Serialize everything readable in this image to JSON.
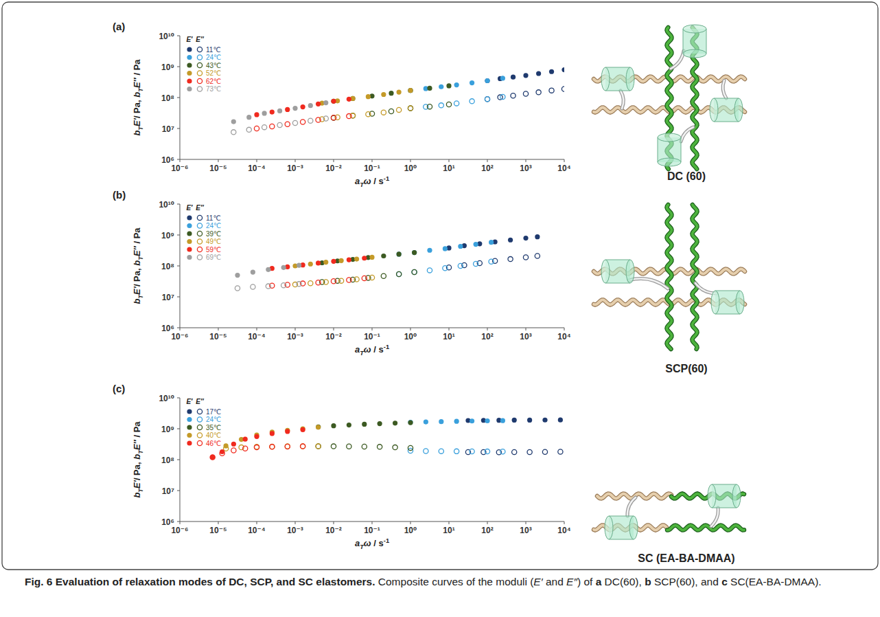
{
  "caption": [
    {
      "text": "Fig. 6 Evaluation of relaxation modes of DC, SCP, and SC elastomers.",
      "style": "bold"
    },
    {
      "text": " Composite curves of the moduli (",
      "style": "normal"
    },
    {
      "text": "E′",
      "style": "italic"
    },
    {
      "text": " and ",
      "style": "normal"
    },
    {
      "text": "E″",
      "style": "italic"
    },
    {
      "text": ") of ",
      "style": "normal"
    },
    {
      "text": "a",
      "style": "bold"
    },
    {
      "text": " DC(60), ",
      "style": "normal"
    },
    {
      "text": "b",
      "style": "bold"
    },
    {
      "text": " SCP(60), and ",
      "style": "normal"
    },
    {
      "text": "c",
      "style": "bold"
    },
    {
      "text": " SC(EA-BA-DMAA).",
      "style": "normal"
    }
  ],
  "chart_data": [
    {
      "type": "scatter",
      "panel_label": "(a)",
      "schematic_label": "DC (60)",
      "xlabel": [
        {
          "text": "a",
          "style": "italic"
        },
        {
          "text": "T",
          "style": "sub"
        },
        {
          "text": "ω",
          "style": "italic"
        },
        {
          "text": " / s",
          "style": "normal"
        },
        {
          "text": "-1",
          "style": "sup"
        }
      ],
      "ylabel": [
        {
          "text": "b",
          "style": "italic"
        },
        {
          "text": "T",
          "style": "sub"
        },
        {
          "text": "E′",
          "style": "italic"
        },
        {
          "text": "/ Pa, ",
          "style": "normal"
        },
        {
          "text": "b",
          "style": "italic"
        },
        {
          "text": "T",
          "style": "sub"
        },
        {
          "text": "E″",
          "style": "italic"
        },
        {
          "text": " / Pa",
          "style": "normal"
        }
      ],
      "log": true,
      "legend": "upper left",
      "marker": "circle",
      "legend_headers": [
        "E′",
        "E″"
      ],
      "xlim": [
        1e-06,
        10000.0
      ],
      "ylim": [
        1000000.0,
        10000000000.0
      ],
      "xticks": [
        {
          "value": 1e-06,
          "label": "10⁻⁶"
        },
        {
          "value": 1e-05,
          "label": "10⁻⁵"
        },
        {
          "value": 0.0001,
          "label": "10⁻⁴"
        },
        {
          "value": 0.001,
          "label": "10⁻³"
        },
        {
          "value": 0.01,
          "label": "10⁻²"
        },
        {
          "value": 0.1,
          "label": "10⁻¹"
        },
        {
          "value": 1,
          "label": "10⁰"
        },
        {
          "value": 10,
          "label": "10¹"
        },
        {
          "value": 100,
          "label": "10²"
        },
        {
          "value": 1000,
          "label": "10³"
        },
        {
          "value": 10000,
          "label": "10⁴"
        }
      ],
      "yticks": [
        {
          "value": 1000000.0,
          "label": "10⁶"
        },
        {
          "value": 10000000.0,
          "label": "10⁷"
        },
        {
          "value": 100000000.0,
          "label": "10⁸"
        },
        {
          "value": 1000000000.0,
          "label": "10⁹"
        },
        {
          "value": 10000000000.0,
          "label": "10¹⁰"
        }
      ],
      "series": [
        {
          "name": "11℃",
          "color": "#1f3a6e",
          "x": [
            100,
            215,
            468,
            1000,
            2150,
            4680,
            10000
          ],
          "values": [
            350000000.0,
            410000000.0,
            460000000.0,
            520000000.0,
            600000000.0,
            690000000.0,
            790000000.0
          ],
          "loss": [
            89000000.0,
            102000000.0,
            115000000.0,
            132000000.0,
            148000000.0,
            170000000.0,
            190000000.0
          ]
        },
        {
          "name": "24℃",
          "color": "#3aa0dc",
          "x": [
            1,
            2.5,
            6.3,
            15.8,
            39.8,
            100,
            251
          ],
          "values": [
            170000000.0,
            195000000.0,
            224000000.0,
            257000000.0,
            300000000.0,
            350000000.0,
            420000000.0
          ],
          "loss": [
            45000000.0,
            50000000.0,
            56000000.0,
            65000000.0,
            76000000.0,
            89000000.0,
            105000000.0
          ]
        },
        {
          "name": "43℃",
          "color": "#3c5a22",
          "x": [
            0.01,
            0.0316,
            0.1,
            0.316,
            1,
            3.16,
            10
          ],
          "values": [
            76000000.0,
            93000000.0,
            112000000.0,
            138000000.0,
            170000000.0,
            200000000.0,
            240000000.0
          ],
          "loss": [
            22000000.0,
            26000000.0,
            30000000.0,
            36000000.0,
            45000000.0,
            51000000.0,
            60000000.0
          ]
        },
        {
          "name": "52℃",
          "color": "#c49a28",
          "x": [
            0.005,
            0.0126,
            0.0316,
            0.0794,
            0.2,
            0.5,
            1
          ],
          "values": [
            66000000.0,
            78000000.0,
            93000000.0,
            107000000.0,
            126000000.0,
            150000000.0,
            170000000.0
          ],
          "loss": [
            20000000.0,
            23000000.0,
            26000000.0,
            29000000.0,
            33000000.0,
            40000000.0,
            45000000.0
          ]
        },
        {
          "name": "62℃",
          "color": "#f02a1e",
          "x": [
            0.0001,
            0.00025,
            0.00063,
            0.00158,
            0.00398,
            0.01,
            0.0251
          ],
          "values": [
            28000000.0,
            34000000.0,
            41000000.0,
            50000000.0,
            62000000.0,
            76000000.0,
            89000000.0
          ],
          "loss": [
            10000000.0,
            11700000.0,
            13800000.0,
            16200000.0,
            19000000.0,
            22400000.0,
            25000000.0
          ]
        },
        {
          "name": "73℃",
          "color": "#9e9e9e",
          "x": [
            2.5e-05,
            6.3e-05,
            0.000158,
            0.000398,
            0.001,
            0.0025,
            0.0063
          ],
          "values": [
            16600000.0,
            23000000.0,
            31000000.0,
            37000000.0,
            45000000.0,
            55000000.0,
            68000000.0
          ],
          "loss": [
            7600000.0,
            9100000.0,
            11000000.0,
            12900000.0,
            15100000.0,
            17800000.0,
            21000000.0
          ]
        }
      ]
    },
    {
      "type": "scatter",
      "panel_label": "(b)",
      "schematic_label": "SCP(60)",
      "xlabel": [
        {
          "text": "a",
          "style": "italic"
        },
        {
          "text": "T",
          "style": "sub"
        },
        {
          "text": "ω",
          "style": "italic"
        },
        {
          "text": " / s",
          "style": "normal"
        },
        {
          "text": "-1",
          "style": "sup"
        }
      ],
      "ylabel": [
        {
          "text": "b",
          "style": "italic"
        },
        {
          "text": "T",
          "style": "sub"
        },
        {
          "text": "E′",
          "style": "italic"
        },
        {
          "text": "/ Pa, ",
          "style": "normal"
        },
        {
          "text": "b",
          "style": "italic"
        },
        {
          "text": "T",
          "style": "sub"
        },
        {
          "text": "E″",
          "style": "italic"
        },
        {
          "text": " / Pa",
          "style": "normal"
        }
      ],
      "log": true,
      "legend": "upper left",
      "marker": "circle",
      "legend_headers": [
        "E′",
        "E″"
      ],
      "xlim": [
        1e-06,
        10000.0
      ],
      "ylim": [
        1000000.0,
        10000000000.0
      ],
      "xticks": [
        {
          "value": 1e-06,
          "label": "10⁻⁶"
        },
        {
          "value": 1e-05,
          "label": "10⁻⁵"
        },
        {
          "value": 0.0001,
          "label": "10⁻⁴"
        },
        {
          "value": 0.001,
          "label": "10⁻³"
        },
        {
          "value": 0.01,
          "label": "10⁻²"
        },
        {
          "value": 0.1,
          "label": "10⁻¹"
        },
        {
          "value": 1,
          "label": "10⁰"
        },
        {
          "value": 10,
          "label": "10¹"
        },
        {
          "value": 100,
          "label": "10²"
        },
        {
          "value": 1000,
          "label": "10³"
        },
        {
          "value": 10000,
          "label": "10⁴"
        }
      ],
      "yticks": [
        {
          "value": 1000000.0,
          "label": "10⁶"
        },
        {
          "value": 10000000.0,
          "label": "10⁷"
        },
        {
          "value": 100000000.0,
          "label": "10⁸"
        },
        {
          "value": 1000000000.0,
          "label": "10⁹"
        },
        {
          "value": 10000000000.0,
          "label": "10¹⁰"
        }
      ],
      "series": [
        {
          "name": "11℃",
          "color": "#1f3a6e",
          "x": [
            10,
            25.1,
            63.1,
            158,
            398,
            1000,
            2000
          ],
          "values": [
            380000000.0,
            450000000.0,
            520000000.0,
            600000000.0,
            690000000.0,
            790000000.0,
            870000000.0
          ],
          "loss": [
            89000000.0,
            105000000.0,
            123000000.0,
            145000000.0,
            166000000.0,
            190000000.0,
            210000000.0
          ]
        },
        {
          "name": "24℃",
          "color": "#3aa0dc",
          "x": [
            0.5,
            1.26,
            3.16,
            7.94,
            20,
            50,
            126
          ],
          "values": [
            240000000.0,
            270000000.0,
            320000000.0,
            360000000.0,
            430000000.0,
            500000000.0,
            580000000.0
          ],
          "loss": [
            54000000.0,
            63000000.0,
            72000000.0,
            85000000.0,
            100000000.0,
            117000000.0,
            138000000.0
          ]
        },
        {
          "name": "39℃",
          "color": "#3c5a22",
          "x": [
            0.005,
            0.0126,
            0.0316,
            0.0794,
            0.2,
            0.5,
            1.26
          ],
          "values": [
            126000000.0,
            145000000.0,
            162000000.0,
            186000000.0,
            210000000.0,
            240000000.0,
            270000000.0
          ],
          "loss": [
            30000000.0,
            33000000.0,
            36000000.0,
            41000000.0,
            47000000.0,
            54000000.0,
            63000000.0
          ]
        },
        {
          "name": "49℃",
          "color": "#c49a28",
          "x": [
            0.001,
            0.0025,
            0.0063,
            0.0158,
            0.0398,
            0.1
          ],
          "values": [
            100000000.0,
            115000000.0,
            132000000.0,
            148000000.0,
            166000000.0,
            190000000.0
          ],
          "loss": [
            25000000.0,
            27500000.0,
            30000000.0,
            33000000.0,
            37000000.0,
            42000000.0
          ]
        },
        {
          "name": "59℃",
          "color": "#f02a1e",
          "x": [
            0.00025,
            0.00063,
            0.00158,
            0.00398,
            0.01,
            0.0251,
            0.0631
          ],
          "values": [
            83000000.0,
            93000000.0,
            107000000.0,
            123000000.0,
            141000000.0,
            158000000.0,
            178000000.0
          ],
          "loss": [
            23000000.0,
            24500000.0,
            27000000.0,
            29000000.0,
            32000000.0,
            35000000.0,
            40000000.0
          ]
        },
        {
          "name": "69℃",
          "color": "#9e9e9e",
          "x": [
            3.16e-05,
            7.94e-05,
            0.0002,
            0.0005,
            0.00126
          ],
          "values": [
            50000000.0,
            63000000.0,
            76000000.0,
            89000000.0,
            105000000.0
          ],
          "loss": [
            19000000.0,
            21000000.0,
            22000000.0,
            23500000.0,
            26000000.0
          ]
        }
      ]
    },
    {
      "type": "scatter",
      "panel_label": "(c)",
      "schematic_label": "SC (EA-BA-DMAA)",
      "xlabel": [
        {
          "text": "a",
          "style": "italic"
        },
        {
          "text": "T",
          "style": "sub"
        },
        {
          "text": "ω",
          "style": "italic"
        },
        {
          "text": " / s",
          "style": "normal"
        },
        {
          "text": "-1",
          "style": "sup"
        }
      ],
      "ylabel": [
        {
          "text": "b",
          "style": "italic"
        },
        {
          "text": "T",
          "style": "sub"
        },
        {
          "text": "E′",
          "style": "italic"
        },
        {
          "text": "/ Pa, ",
          "style": "normal"
        },
        {
          "text": "b",
          "style": "italic"
        },
        {
          "text": "T",
          "style": "sub"
        },
        {
          "text": "E″",
          "style": "italic"
        },
        {
          "text": " / Pa",
          "style": "normal"
        }
      ],
      "log": true,
      "legend": "upper left",
      "marker": "circle",
      "legend_headers": [
        "E′",
        "E″"
      ],
      "xlim": [
        1e-06,
        10000.0
      ],
      "ylim": [
        1000000.0,
        10000000000.0
      ],
      "xticks": [
        {
          "value": 1e-06,
          "label": "10⁻⁶"
        },
        {
          "value": 1e-05,
          "label": "10⁻⁵"
        },
        {
          "value": 0.0001,
          "label": "10⁻⁴"
        },
        {
          "value": 0.001,
          "label": "10⁻³"
        },
        {
          "value": 0.01,
          "label": "10⁻²"
        },
        {
          "value": 0.1,
          "label": "10⁻¹"
        },
        {
          "value": 1,
          "label": "10⁰"
        },
        {
          "value": 10,
          "label": "10¹"
        },
        {
          "value": 100,
          "label": "10²"
        },
        {
          "value": 1000,
          "label": "10³"
        },
        {
          "value": 10000,
          "label": "10⁴"
        }
      ],
      "yticks": [
        {
          "value": 1000000.0,
          "label": "10⁶"
        },
        {
          "value": 10000000.0,
          "label": "10⁷"
        },
        {
          "value": 100000000.0,
          "label": "10⁸"
        },
        {
          "value": 1000000000.0,
          "label": "10⁹"
        },
        {
          "value": 10000000000.0,
          "label": "10¹⁰"
        }
      ],
      "series": [
        {
          "name": "17℃",
          "color": "#1f3a6e",
          "x": [
            31.6,
            79.4,
            200,
            501,
            1260,
            3160,
            7940
          ],
          "values": [
            1850000000.0,
            1870000000.0,
            1880000000.0,
            1900000000.0,
            1900000000.0,
            1920000000.0,
            1930000000.0
          ],
          "loss": [
            175000000.0,
            175000000.0,
            174000000.0,
            175000000.0,
            176000000.0,
            178000000.0,
            180000000.0
          ]
        },
        {
          "name": "24℃",
          "color": "#3aa0dc",
          "x": [
            1,
            2.51,
            6.31,
            15.8,
            39.8,
            100,
            251
          ],
          "values": [
            1620000000.0,
            1660000000.0,
            1700000000.0,
            1740000000.0,
            1780000000.0,
            1800000000.0,
            1830000000.0
          ],
          "loss": [
            195000000.0,
            190000000.0,
            188000000.0,
            186000000.0,
            185000000.0,
            184000000.0,
            182000000.0
          ]
        },
        {
          "name": "35℃",
          "color": "#3c5a22",
          "x": [
            0.004,
            0.01,
            0.0251,
            0.0631,
            0.158,
            0.398,
            1
          ],
          "values": [
            1150000000.0,
            1250000000.0,
            1320000000.0,
            1400000000.0,
            1460000000.0,
            1520000000.0,
            1580000000.0
          ],
          "loss": [
            270000000.0,
            270000000.0,
            268000000.0,
            265000000.0,
            260000000.0,
            250000000.0,
            240000000.0
          ]
        },
        {
          "name": "40℃",
          "color": "#c49a28",
          "x": [
            1.58e-05,
            3.98e-05,
            0.0001,
            0.000251,
            0.000631,
            0.00158,
            0.00398
          ],
          "values": [
            280000000.0,
            450000000.0,
            630000000.0,
            780000000.0,
            890000000.0,
            1000000000.0,
            1120000000.0
          ],
          "loss": [
            230000000.0,
            250000000.0,
            260000000.0,
            265000000.0,
            270000000.0,
            270000000.0,
            270000000.0
          ]
        },
        {
          "name": "46℃",
          "color": "#f02a1e",
          "x": [
            7.1e-06,
            1.26e-05,
            2.51e-05,
            5.01e-05,
            0.0001,
            0.000251,
            0.000631,
            0.00158
          ],
          "values": [
            120000000.0,
            180000000.0,
            320000000.0,
            460000000.0,
            560000000.0,
            700000000.0,
            820000000.0,
            930000000.0
          ],
          "loss": [
            120000000.0,
            160000000.0,
            200000000.0,
            230000000.0,
            250000000.0,
            260000000.0,
            265000000.0,
            270000000.0
          ]
        }
      ]
    }
  ]
}
